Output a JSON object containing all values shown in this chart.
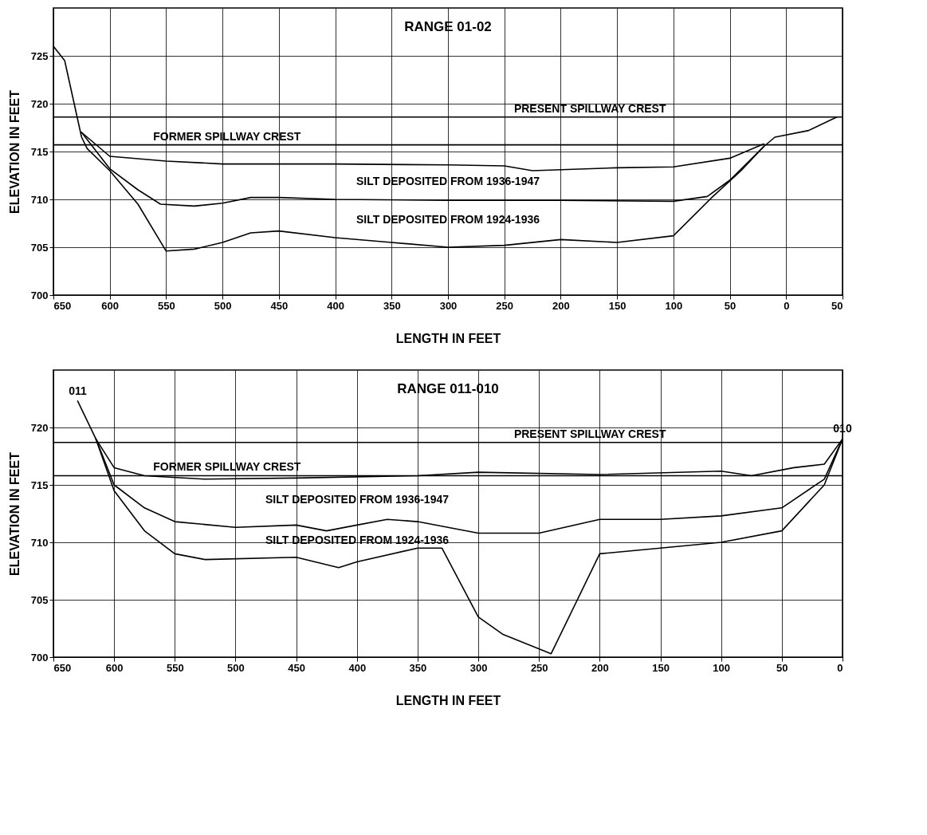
{
  "chart_data": [
    {
      "type": "line",
      "title": "RANGE 01-02",
      "xlabel": "LENGTH IN FEET",
      "ylabel": "ELEVATION IN FEET",
      "xlim": [
        650,
        -50
      ],
      "xticks": [
        650,
        600,
        550,
        500,
        450,
        400,
        350,
        300,
        250,
        200,
        150,
        100,
        50,
        0,
        {
          "value": -50,
          "label": "50"
        }
      ],
      "ylim": [
        700,
        730
      ],
      "yticks": [
        700,
        705,
        710,
        715,
        720,
        725
      ],
      "grid": true,
      "line_style": "solid",
      "series": [
        {
          "color": "#000000",
          "x": [
            650,
            640,
            625,
            620,
            600,
            575,
            550,
            525,
            500,
            475,
            450,
            400,
            350,
            300,
            250,
            200,
            150,
            100,
            65,
            40,
            20,
            10,
            -20,
            -45
          ],
          "values": [
            726,
            724.5,
            716.5,
            715.3,
            713,
            709.5,
            704.6,
            704.8,
            705.5,
            706.5,
            706.7,
            706,
            705.5,
            705,
            705.2,
            705.8,
            705.5,
            706.2,
            710.3,
            713,
            715.5,
            716.5,
            717.2,
            718.6
          ]
        },
        {
          "color": "#000000",
          "x": [
            625,
            600,
            575,
            555,
            525,
            500,
            475,
            450,
            400,
            300,
            200,
            100,
            70,
            50,
            20
          ],
          "values": [
            717,
            713.2,
            711,
            709.5,
            709.3,
            709.6,
            710.2,
            710.2,
            710,
            709.9,
            709.9,
            709.8,
            710.3,
            712,
            715.5
          ]
        },
        {
          "color": "#000000",
          "x": [
            625,
            600,
            550,
            500,
            400,
            300,
            250,
            225,
            150,
            100,
            50,
            20
          ],
          "values": [
            717,
            714.5,
            714,
            713.7,
            713.7,
            713.6,
            713.5,
            713,
            713.3,
            713.4,
            714.3,
            715.8
          ]
        }
      ],
      "ref_lines": [
        {
          "axis": "y",
          "value": 718.6,
          "label": "PRESENT SPILLWAY CREST"
        },
        {
          "axis": "y",
          "value": 715.7,
          "label": "FORMER SPILLWAY CREST"
        }
      ],
      "annotations": [
        "SILT DEPOSITED FROM 1936-1947",
        "SILT DEPOSITED FROM 1924-1936"
      ]
    },
    {
      "type": "line",
      "title": "RANGE 011-010",
      "xlabel": "LENGTH IN FEET",
      "ylabel": "ELEVATION IN FEET",
      "xlim": [
        650,
        0
      ],
      "xticks": [
        650,
        600,
        550,
        500,
        450,
        400,
        350,
        300,
        250,
        200,
        150,
        100,
        50,
        0
      ],
      "ylim": [
        700,
        725
      ],
      "yticks": [
        700,
        705,
        710,
        715,
        720
      ],
      "grid": true,
      "line_style": "solid",
      "series": [
        {
          "color": "#000000",
          "x": [
            630,
            615,
            600,
            575,
            550,
            525,
            450,
            415,
            400,
            350,
            330,
            300,
            280,
            240,
            200,
            150,
            100,
            50,
            15,
            0
          ],
          "values": [
            722.3,
            719,
            714.5,
            711,
            709,
            708.5,
            708.7,
            707.8,
            708.3,
            709.5,
            709.5,
            703.5,
            702,
            700.3,
            709,
            709.5,
            710,
            711,
            715,
            719
          ]
        },
        {
          "color": "#000000",
          "x": [
            615,
            600,
            575,
            550,
            500,
            450,
            425,
            400,
            375,
            350,
            300,
            250,
            200,
            150,
            100,
            50,
            15,
            0
          ],
          "values": [
            719,
            715,
            713,
            711.8,
            711.3,
            711.5,
            711,
            711.5,
            712,
            711.8,
            710.8,
            710.8,
            712,
            712,
            712.3,
            713,
            715.5,
            719
          ]
        },
        {
          "color": "#000000",
          "x": [
            615,
            600,
            575,
            525,
            450,
            350,
            300,
            200,
            100,
            75,
            40,
            15,
            0
          ],
          "values": [
            719,
            716.5,
            715.8,
            715.5,
            715.6,
            715.8,
            716.1,
            715.9,
            716.2,
            715.8,
            716.5,
            716.8,
            719
          ]
        }
      ],
      "ref_lines": [
        {
          "axis": "y",
          "value": 718.7,
          "label": "PRESENT SPILLWAY CREST"
        },
        {
          "axis": "y",
          "value": 715.8,
          "label": "FORMER SPILLWAY CREST"
        }
      ],
      "annotations": [
        "SILT DEPOSITED FROM 1936-1947",
        "SILT DEPOSITED FROM 1924-1936",
        {
          "text": "011",
          "x": 630,
          "y": 722.3
        },
        {
          "text": "010",
          "x": 0,
          "y": 719
        }
      ]
    }
  ]
}
